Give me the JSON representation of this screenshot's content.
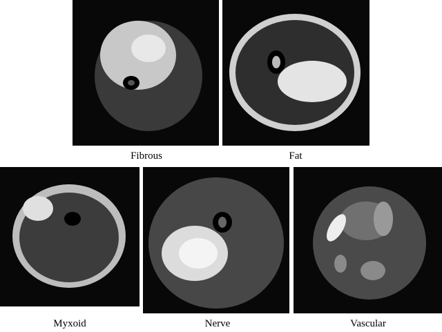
{
  "panels": [
    {
      "label": "Fibrous"
    },
    {
      "label": "Fat"
    },
    {
      "label": "Myxoid"
    },
    {
      "label": "Nerve"
    },
    {
      "label": "Vascular"
    }
  ]
}
